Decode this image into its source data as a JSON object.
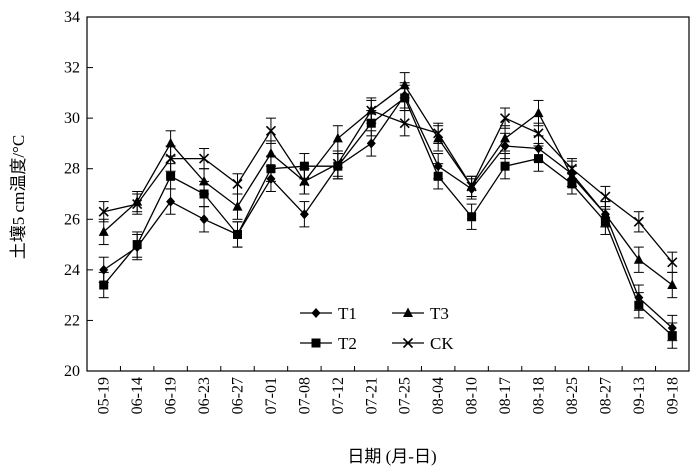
{
  "chart_data": {
    "type": "line",
    "title": "",
    "xlabel": "日期 (月-日)",
    "ylabel": "土壤5 cm温度/°C",
    "ylim": [
      20,
      34
    ],
    "yticks": [
      20,
      22,
      24,
      26,
      28,
      30,
      32,
      34
    ],
    "grid": false,
    "legend_position": "bottom-center",
    "categories": [
      "05-19",
      "06-14",
      "06-19",
      "06-23",
      "06-27",
      "07-01",
      "07-08",
      "07-12",
      "07-21",
      "07-25",
      "08-04",
      "08-10",
      "08-17",
      "08-18",
      "08-25",
      "08-27",
      "09-13",
      "09-18"
    ],
    "series": [
      {
        "name": "T1",
        "marker": "diamond",
        "values": [
          24.0,
          24.9,
          26.7,
          26.0,
          25.4,
          27.6,
          26.2,
          28.1,
          29.0,
          30.9,
          28.1,
          27.2,
          28.9,
          28.8,
          27.8,
          26.2,
          22.9,
          21.7
        ],
        "errors": [
          0.5,
          0.5,
          0.5,
          0.5,
          0.5,
          0.5,
          0.5,
          0.5,
          0.5,
          0.5,
          0.5,
          0.4,
          0.5,
          0.5,
          0.5,
          0.5,
          0.5,
          0.5
        ]
      },
      {
        "name": "T2",
        "marker": "square",
        "values": [
          23.4,
          25.0,
          27.7,
          27.0,
          25.4,
          28.0,
          28.1,
          28.1,
          29.8,
          30.8,
          27.7,
          26.1,
          28.1,
          28.4,
          27.4,
          25.9,
          22.6,
          21.4
        ],
        "errors": [
          0.5,
          0.5,
          0.5,
          0.5,
          0.5,
          0.5,
          0.5,
          0.5,
          0.5,
          0.5,
          0.5,
          0.5,
          0.5,
          0.5,
          0.4,
          0.5,
          0.5,
          0.5
        ]
      },
      {
        "name": "T3",
        "marker": "triangle",
        "values": [
          25.5,
          26.7,
          29.0,
          27.5,
          26.5,
          28.6,
          27.5,
          29.2,
          30.3,
          31.3,
          29.2,
          27.3,
          29.2,
          30.2,
          27.7,
          26.2,
          24.4,
          23.4
        ],
        "errors": [
          0.5,
          0.4,
          0.5,
          0.5,
          0.5,
          0.5,
          0.5,
          0.5,
          0.5,
          0.5,
          0.5,
          0.4,
          0.5,
          0.5,
          0.4,
          0.5,
          0.5,
          0.5
        ]
      },
      {
        "name": "CK",
        "marker": "x",
        "values": [
          26.3,
          26.6,
          28.4,
          28.4,
          27.4,
          29.5,
          27.5,
          28.2,
          30.3,
          29.8,
          29.4,
          27.3,
          30.0,
          29.4,
          28.0,
          26.9,
          25.9,
          24.3
        ],
        "errors": [
          0.4,
          0.4,
          0.5,
          0.4,
          0.4,
          0.5,
          0.5,
          0.5,
          0.4,
          0.5,
          0.4,
          0.4,
          0.4,
          0.4,
          0.4,
          0.4,
          0.4,
          0.4
        ]
      }
    ]
  }
}
